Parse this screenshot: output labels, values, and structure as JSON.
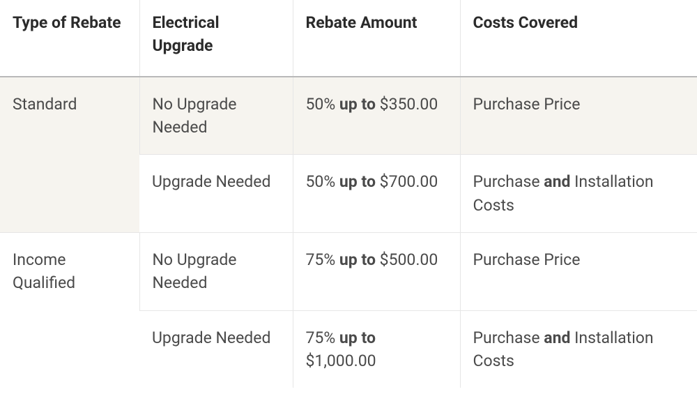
{
  "table": {
    "type": "table",
    "background_color": "#ffffff",
    "highlight_row_background": "#f6f4ef",
    "border_color": "#e6e6e6",
    "header_border_color": "#b9b9b9",
    "text_color": "#4a4a4a",
    "header_text_color": "#2b2b2b",
    "font_size_pt": 17,
    "columns": [
      {
        "key": "type",
        "label": "Type of Rebate",
        "width_pct": 20
      },
      {
        "key": "elec",
        "label": "Electrical Upgrade",
        "width_pct": 22
      },
      {
        "key": "amount",
        "label": "Rebate Amount",
        "width_pct": 24
      },
      {
        "key": "costs",
        "label": "Costs Covered",
        "width_pct": 34
      }
    ],
    "groups": [
      {
        "type_label": "Standard",
        "rows": [
          {
            "highlight": true,
            "elec": "No Upgrade Needed",
            "amount_pct": "50%",
            "amount_upto": "up to",
            "amount_cap": "$350.00",
            "costs_pre": "Purchase Price",
            "costs_bold": "",
            "costs_post": ""
          },
          {
            "highlight": false,
            "elec": "Upgrade Needed",
            "amount_pct": "50%",
            "amount_upto": "up to",
            "amount_cap": "$700.00",
            "costs_pre": "Purchase ",
            "costs_bold": "and",
            "costs_post": " Installation Costs"
          }
        ]
      },
      {
        "type_label": "Income Qualified",
        "rows": [
          {
            "highlight": false,
            "elec": "No Upgrade Needed",
            "amount_pct": "75%",
            "amount_upto": "up to",
            "amount_cap": "$500.00",
            "costs_pre": "Purchase Price",
            "costs_bold": "",
            "costs_post": ""
          },
          {
            "highlight": false,
            "elec": "Upgrade Needed",
            "amount_pct": "75%",
            "amount_upto": "up to",
            "amount_cap": "$1,000.00",
            "costs_pre": "Purchase ",
            "costs_bold": "and",
            "costs_post": " Installation Costs"
          }
        ]
      }
    ]
  }
}
